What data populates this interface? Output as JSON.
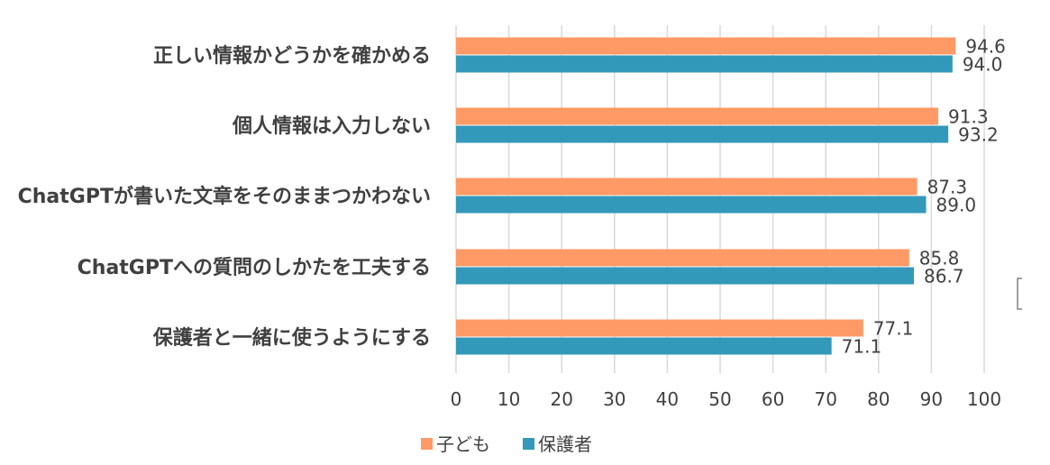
{
  "chart_data": {
    "type": "bar",
    "orientation": "horizontal",
    "categories": [
      "正しい情報かどうかを確かめる",
      "個人情報は入力しない",
      "ChatGPTが書いた文章をそのままつかわない",
      "ChatGPTへの質問のしかたを工夫する",
      "保護者と一緒に使うようにする"
    ],
    "series": [
      {
        "name": "子ども",
        "color": "#ff9966",
        "values": [
          94.6,
          91.3,
          87.3,
          85.8,
          77.1
        ],
        "labels": [
          "94.6",
          "91.3",
          "87.3",
          "85.8",
          "77.1"
        ]
      },
      {
        "name": "保護者",
        "color": "#3399bb",
        "values": [
          94.0,
          93.2,
          89.0,
          86.7,
          71.1
        ],
        "labels": [
          "94.0",
          "93.2",
          "89.0",
          "86.7",
          "71.1"
        ]
      }
    ],
    "xlim": [
      0,
      100
    ],
    "xticks": [
      "0",
      "10",
      "20",
      "30",
      "40",
      "50",
      "60",
      "70",
      "80",
      "90",
      "100"
    ],
    "title": "",
    "xlabel": "",
    "ylabel": "",
    "grid": true,
    "legend_position": "bottom-center"
  }
}
